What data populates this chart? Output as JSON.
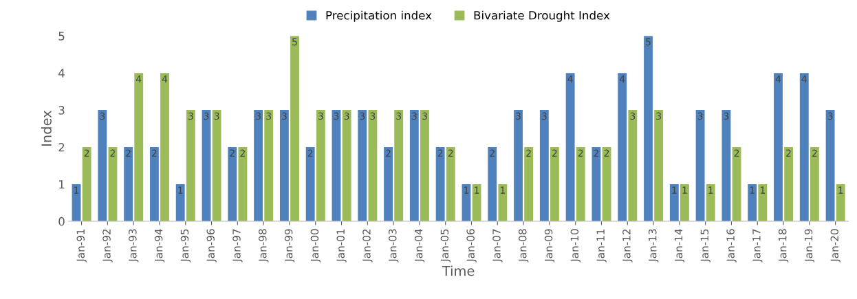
{
  "chart_data": {
    "type": "bar",
    "xlabel": "Time",
    "ylabel": "Index",
    "categories": [
      "Jan-91",
      "Jan-92",
      "Jan-93",
      "Jan-94",
      "Jan-95",
      "Jan-96",
      "Jan-97",
      "Jan-98",
      "Jan-99",
      "Jan-00",
      "Jan-01",
      "Jan-02",
      "Jan-03",
      "Jan-04",
      "Jan-05",
      "Jan-06",
      "Jan-07",
      "Jan-08",
      "Jan-09",
      "Jan-10",
      "Jan-11",
      "Jan-12",
      "Jan-13",
      "Jan-14",
      "Jan-15",
      "Jan-16",
      "Jan-17",
      "Jan-18",
      "Jan-19",
      "Jan-20"
    ],
    "series": [
      {
        "name": "Precipitation index",
        "color": "#4f81bd",
        "values": [
          1,
          3,
          2,
          2,
          1,
          3,
          2,
          3,
          3,
          2,
          3,
          3,
          2,
          3,
          2,
          1,
          2,
          3,
          3,
          4,
          2,
          4,
          5,
          1,
          3,
          3,
          1,
          4,
          4,
          3
        ]
      },
      {
        "name": "Bivariate Drought Index",
        "color": "#9bbb59",
        "values": [
          2,
          2,
          4,
          4,
          3,
          3,
          2,
          3,
          5,
          3,
          3,
          3,
          3,
          3,
          2,
          1,
          1,
          2,
          2,
          2,
          2,
          3,
          3,
          1,
          1,
          2,
          1,
          2,
          2,
          1
        ]
      }
    ],
    "ylim": [
      0,
      5
    ],
    "yticks": [
      0,
      1,
      2,
      3,
      4,
      5
    ],
    "grid": false,
    "legend": "top",
    "data_labels": true
  }
}
